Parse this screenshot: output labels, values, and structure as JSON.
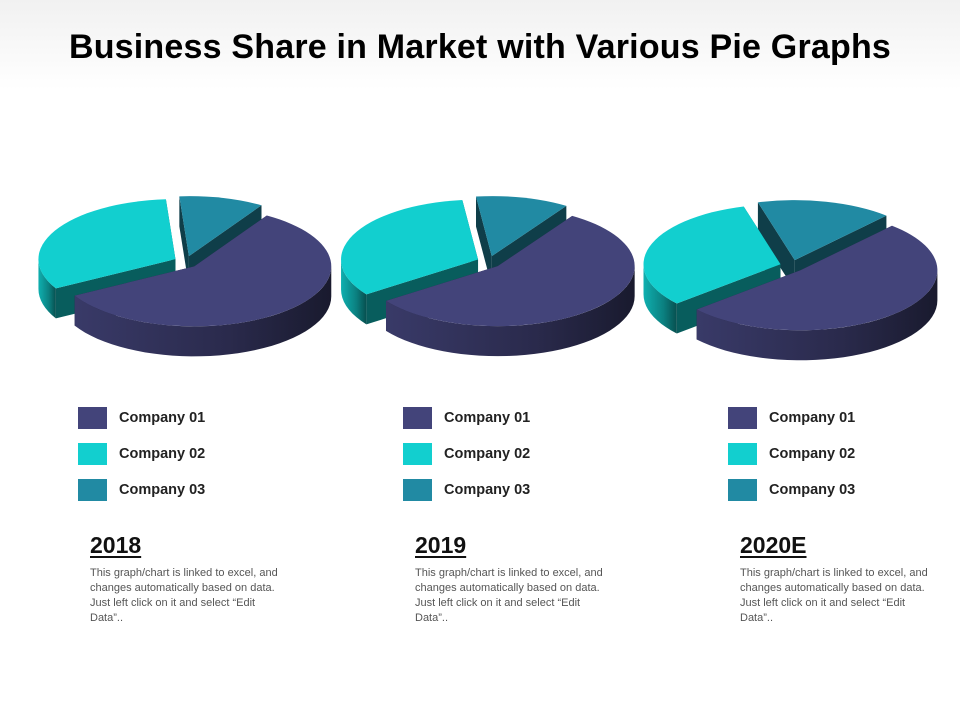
{
  "title": "Business Share in Market with Various Pie Graphs",
  "colors": {
    "company_01": "#43447a",
    "company_02": "#12cfcf",
    "company_03": "#218aa3"
  },
  "chart_data": [
    {
      "type": "pie",
      "title": "2018",
      "categories": [
        "Company 01",
        "Company 02",
        "Company 03"
      ],
      "values": [
        58,
        32,
        10
      ],
      "legend": [
        "Company 01",
        "Company 02",
        "Company 03"
      ],
      "description": "This graph/chart is linked to excel, and changes automatically based on data. Just left click on it and select “Edit Data”.."
    },
    {
      "type": "pie",
      "title": "2019",
      "categories": [
        "Company 01",
        "Company 02",
        "Company 03"
      ],
      "values": [
        56,
        33,
        11
      ],
      "legend": [
        "Company 01",
        "Company 02",
        "Company 03"
      ],
      "description": "This graph/chart is linked to excel, and changes automatically based on data. Just left click on it and select “Edit Data”.."
    },
    {
      "type": "pie",
      "title": "2020E",
      "categories": [
        "Company 01",
        "Company 02",
        "Company 03"
      ],
      "values": [
        52,
        32,
        16
      ],
      "legend": [
        "Company 01",
        "Company 02",
        "Company 03"
      ],
      "description": "This graph/chart is linked to excel, and changes automatically based on data. Just left click on it and select “Edit Data”.."
    }
  ]
}
